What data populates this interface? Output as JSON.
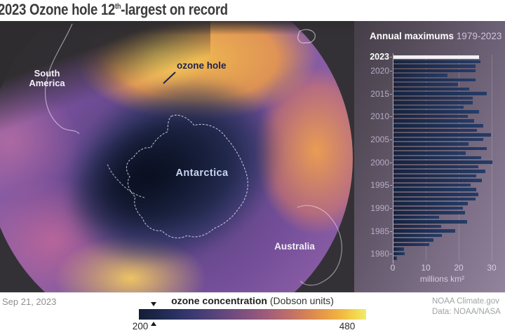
{
  "title": {
    "part1": "2023 Ozone hole 12",
    "sup": "th",
    "part2": "-largest on record"
  },
  "map": {
    "labels": {
      "south_america": "South America",
      "ozone_hole": "ozone hole",
      "antarctica": "Antarctica",
      "australia": "Australia"
    }
  },
  "chart_data": {
    "type": "bar",
    "orientation": "horizontal",
    "title": "Annual maximums",
    "subtitle": "1979-2023",
    "xlabel": "millions km²",
    "xlim": [
      0,
      30
    ],
    "xticks": [
      0,
      10,
      20,
      30
    ],
    "ytick_years": [
      2023,
      2020,
      2015,
      2010,
      2005,
      2000,
      1995,
      1990,
      1985,
      1980
    ],
    "highlight_year": 2023,
    "bar_color": "#1d2e52",
    "highlight_color": "#f2f0f4",
    "years": [
      1979,
      1980,
      1981,
      1982,
      1983,
      1984,
      1985,
      1986,
      1987,
      1988,
      1989,
      1990,
      1991,
      1992,
      1993,
      1994,
      1995,
      1996,
      1997,
      1998,
      1999,
      2000,
      2001,
      2002,
      2003,
      2004,
      2005,
      2006,
      2007,
      2008,
      2009,
      2010,
      2011,
      2012,
      2013,
      2014,
      2015,
      2016,
      2017,
      2018,
      2019,
      2020,
      2021,
      2022,
      2023
    ],
    "values": [
      1.1,
      3.3,
      3.1,
      10.8,
      12.2,
      14.7,
      18.8,
      14.4,
      22.4,
      13.8,
      21.7,
      21.1,
      22.6,
      24.9,
      25.8,
      25.1,
      23.3,
      26.8,
      25.1,
      27.9,
      25.8,
      29.9,
      26.5,
      21.9,
      28.4,
      22.7,
      27.2,
      29.6,
      25.3,
      27.2,
      24.4,
      22.6,
      26.0,
      21.2,
      24.0,
      24.1,
      28.2,
      23.0,
      19.6,
      24.8,
      16.4,
      24.8,
      24.8,
      26.4,
      26.0
    ]
  },
  "colorbar": {
    "label_bold": "ozone concentration",
    "label_regular": "(Dobson units)",
    "min": "200",
    "max": "480",
    "min_color": "#141d38",
    "max_color": "#eeeb72"
  },
  "footer": {
    "date": "Sep 21, 2023",
    "credit_source": "NOAA Climate.gov",
    "credit_data": "Data: NOAA/NASA"
  }
}
